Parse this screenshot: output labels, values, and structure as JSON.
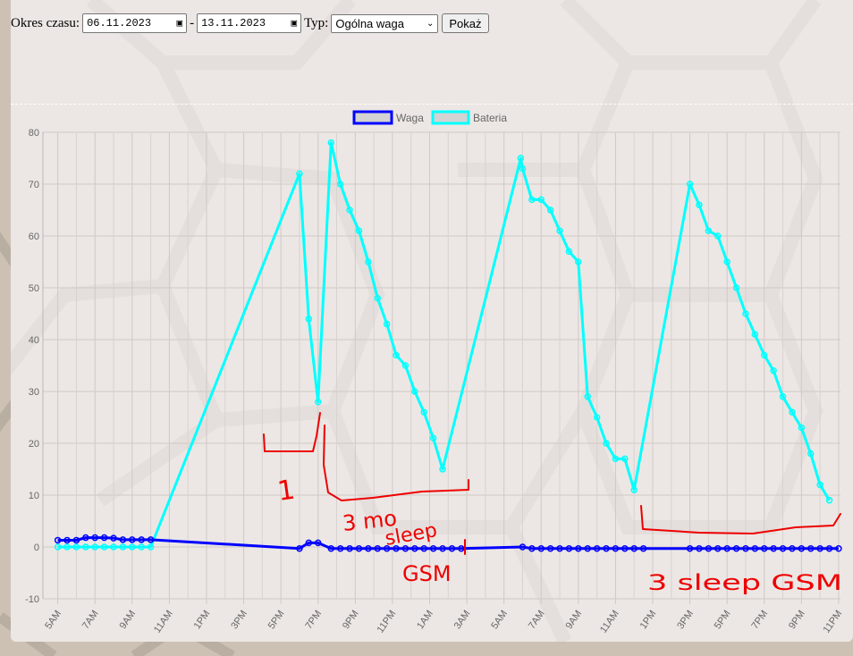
{
  "controls": {
    "period_label": "Okres czasu:",
    "date_from": "06.11.2023",
    "date_separator": "-",
    "date_to": "13.11.2023",
    "type_label": "Typ:",
    "type_selected": "Ogólna waga",
    "show_button": "Pokaż"
  },
  "icons": {
    "calendar": "calendar-icon",
    "dropdown": "chevron-down-icon"
  },
  "chart_data": {
    "type": "line",
    "title": "",
    "xlabel": "",
    "ylabel": "",
    "ylim": [
      -10,
      80
    ],
    "yticks": [
      -10,
      0,
      10,
      20,
      30,
      40,
      50,
      60,
      70,
      80
    ],
    "xticks": [
      "5AM",
      "7AM",
      "9AM",
      "11AM",
      "1PM",
      "3PM",
      "5PM",
      "7PM",
      "9PM",
      "11PM",
      "1AM",
      "3AM",
      "5AM",
      "7AM",
      "9AM",
      "11AM",
      "1PM",
      "3PM",
      "5PM",
      "7PM",
      "9PM",
      "11PM"
    ],
    "grid": true,
    "legend_position": "top-center",
    "series": [
      {
        "name": "Waga",
        "color": "#0000ff",
        "points": [
          [
            5.0,
            1.3
          ],
          [
            5.5,
            1.3
          ],
          [
            6.0,
            1.3
          ],
          [
            6.5,
            1.8
          ],
          [
            7.0,
            1.8
          ],
          [
            7.5,
            1.8
          ],
          [
            8.0,
            1.7
          ],
          [
            8.5,
            1.4
          ],
          [
            9.0,
            1.4
          ],
          [
            9.5,
            1.4
          ],
          [
            10.0,
            1.4
          ],
          [
            18.0,
            -0.3
          ],
          [
            18.5,
            0.8
          ],
          [
            19.0,
            0.8
          ],
          [
            19.7,
            -0.3
          ],
          [
            20.2,
            -0.3
          ],
          [
            20.7,
            -0.3
          ],
          [
            21.2,
            -0.3
          ],
          [
            21.7,
            -0.3
          ],
          [
            22.2,
            -0.3
          ],
          [
            22.7,
            -0.3
          ],
          [
            23.2,
            -0.3
          ],
          [
            23.7,
            -0.3
          ],
          [
            24.2,
            -0.3
          ],
          [
            24.7,
            -0.3
          ],
          [
            25.2,
            -0.3
          ],
          [
            25.7,
            -0.3
          ],
          [
            26.2,
            -0.3
          ],
          [
            26.7,
            -0.3
          ],
          [
            30.0,
            0.0
          ],
          [
            30.5,
            -0.3
          ],
          [
            31.0,
            -0.3
          ],
          [
            31.5,
            -0.3
          ],
          [
            32.0,
            -0.3
          ],
          [
            32.5,
            -0.3
          ],
          [
            33.0,
            -0.3
          ],
          [
            33.5,
            -0.3
          ],
          [
            34.0,
            -0.3
          ],
          [
            34.5,
            -0.3
          ],
          [
            35.0,
            -0.3
          ],
          [
            35.5,
            -0.3
          ],
          [
            36.0,
            -0.3
          ],
          [
            36.5,
            -0.3
          ],
          [
            39.0,
            -0.3
          ],
          [
            39.5,
            -0.3
          ],
          [
            40.0,
            -0.3
          ],
          [
            40.5,
            -0.3
          ],
          [
            41.0,
            -0.3
          ],
          [
            41.5,
            -0.3
          ],
          [
            42.0,
            -0.3
          ],
          [
            42.5,
            -0.3
          ],
          [
            43.0,
            -0.3
          ],
          [
            43.5,
            -0.3
          ],
          [
            44.0,
            -0.3
          ],
          [
            44.5,
            -0.3
          ],
          [
            45.0,
            -0.3
          ],
          [
            45.5,
            -0.3
          ],
          [
            46.0,
            -0.3
          ],
          [
            46.5,
            -0.3
          ],
          [
            47.0,
            -0.3
          ]
        ]
      },
      {
        "name": "Bateria",
        "color": "#00ffff",
        "points": [
          [
            5.0,
            0
          ],
          [
            5.5,
            0
          ],
          [
            6.0,
            0
          ],
          [
            6.5,
            0
          ],
          [
            7.0,
            0
          ],
          [
            7.5,
            0
          ],
          [
            8.0,
            0
          ],
          [
            8.5,
            0
          ],
          [
            9.0,
            0
          ],
          [
            9.5,
            0
          ],
          [
            10.0,
            0
          ],
          [
            18.0,
            72
          ],
          [
            18.5,
            44
          ],
          [
            19.0,
            28
          ],
          [
            19.7,
            78
          ],
          [
            20.2,
            70
          ],
          [
            20.7,
            65
          ],
          [
            21.2,
            61
          ],
          [
            21.7,
            55
          ],
          [
            22.2,
            48
          ],
          [
            22.7,
            43
          ],
          [
            23.2,
            37
          ],
          [
            23.7,
            35
          ],
          [
            24.2,
            30
          ],
          [
            24.7,
            26
          ],
          [
            25.2,
            21
          ],
          [
            25.7,
            15
          ],
          [
            29.9,
            75
          ],
          [
            30.0,
            73
          ],
          [
            30.5,
            67
          ],
          [
            31.0,
            67
          ],
          [
            31.5,
            65
          ],
          [
            32.0,
            61
          ],
          [
            32.5,
            57
          ],
          [
            33.0,
            55
          ],
          [
            33.5,
            29
          ],
          [
            34.0,
            25
          ],
          [
            34.5,
            20
          ],
          [
            35.0,
            17
          ],
          [
            35.5,
            17
          ],
          [
            36.0,
            11
          ],
          [
            39.0,
            70
          ],
          [
            39.5,
            66
          ],
          [
            40.0,
            61
          ],
          [
            40.5,
            60
          ],
          [
            41.0,
            55
          ],
          [
            41.5,
            50
          ],
          [
            42.0,
            45
          ],
          [
            42.5,
            41
          ],
          [
            43.0,
            37
          ],
          [
            43.5,
            34
          ],
          [
            44.0,
            29
          ],
          [
            44.5,
            26
          ],
          [
            45.0,
            23
          ],
          [
            45.5,
            18
          ],
          [
            46.0,
            12
          ],
          [
            46.5,
            9
          ]
        ]
      }
    ],
    "annotations": [
      {
        "text": "1",
        "color": "#ee0000"
      },
      {
        "text": "3 mo",
        "color": "#ee0000"
      },
      {
        "text": "sleep",
        "color": "#ee0000"
      },
      {
        "text": "GSM",
        "color": "#ee0000"
      },
      {
        "text": "3 sleep GSM",
        "color": "#ee0000"
      }
    ]
  }
}
